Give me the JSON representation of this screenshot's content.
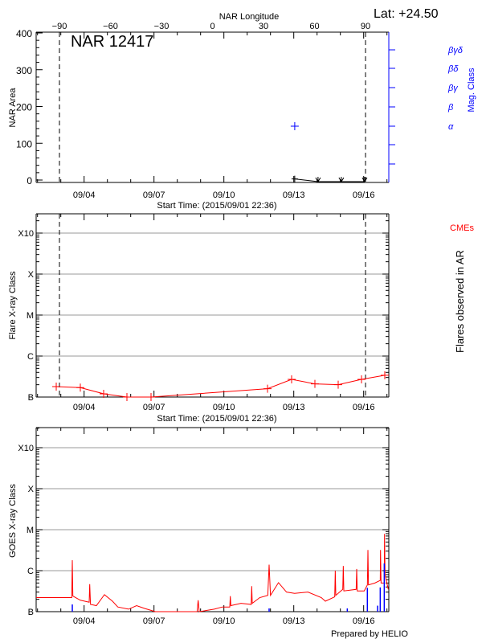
{
  "header": {
    "lat_label": "Lat: +24.50",
    "region_title": "NAR 12417",
    "prepared_by": "Prepared by HELIO"
  },
  "colors": {
    "axis": "#000000",
    "grid": "#999999",
    "mag_class": "#0000ff",
    "flares": "#ff0000",
    "goes_long": "#ff0000",
    "goes_short": "#0000ff",
    "cmes": "#ff0000"
  },
  "chart_data": [
    {
      "type": "line",
      "panel": "area",
      "start": "2015-09-01T22:36",
      "end": "2015-09-17T02:00",
      "xlabel": "Start Time: (2015/09/01 22:36)",
      "x_tick_labels": [
        "09/04",
        "09/07",
        "09/10",
        "09/13",
        "09/16"
      ],
      "x_tick_dates": [
        "2015-09-04T00:00",
        "2015-09-07T00:00",
        "2015-09-10T00:00",
        "2015-09-13T00:00",
        "2015-09-16T00:00"
      ],
      "top_axis": {
        "label": "NAR Longitude",
        "tick_values": [
          -90,
          -60,
          -30,
          0,
          30,
          60,
          90
        ],
        "tick_labels": [
          "−90",
          "−60",
          "−30",
          "0",
          "30",
          "60",
          "90"
        ]
      },
      "limb_longitudes": [
        -90,
        90
      ],
      "ylabel": "NAR Area",
      "ylim": [
        0,
        400
      ],
      "y_ticks": [
        0,
        100,
        200,
        300,
        400
      ],
      "y_tick_labels": [
        "0",
        "100",
        "200",
        "300",
        "400"
      ],
      "area_series": [
        {
          "time": "2015-09-13T01:00",
          "area": 3,
          "marker": "plus"
        },
        {
          "time": "2015-09-14T01:00",
          "area": 0,
          "marker": "arrow"
        },
        {
          "time": "2015-09-15T01:00",
          "area": 0,
          "marker": "arrow"
        },
        {
          "time": "2015-09-16T01:00",
          "area": 0,
          "marker": "arrow"
        }
      ],
      "right_axis": {
        "label": "Mag. Class",
        "classes": [
          "α",
          "β",
          "βγ",
          "βδ",
          "βγδ"
        ]
      },
      "mag_class_series": [
        {
          "time": "2015-09-13T01:00",
          "class": "α"
        }
      ]
    },
    {
      "type": "line",
      "panel": "flares",
      "xlabel": "Start Time: (2015/09/01 22:36)",
      "ylabel": "Flare X-ray Class",
      "right_label": "Flares observed in AR",
      "cme_label": "CMEs",
      "y_scale": "log",
      "y_classes": [
        "B",
        "C",
        "M",
        "X",
        "X10"
      ],
      "y_class_flux": [
        1e-07,
        1e-06,
        1e-05,
        0.0001,
        0.001
      ],
      "grid": true,
      "series": [
        {
          "time": "2015-09-02T19:18",
          "flux": 1.8e-07
        },
        {
          "time": "2015-09-03T20:07",
          "flux": 1.7e-07
        },
        {
          "time": "2015-09-04T20:07",
          "flux": 1.2e-07
        },
        {
          "time": "2015-09-05T20:07",
          "flux": 1e-07
        },
        {
          "time": "2015-09-06T20:57",
          "flux": 1e-07
        },
        {
          "time": "2015-09-11T20:57",
          "flux": 1.6e-07
        },
        {
          "time": "2015-09-12T21:46",
          "flux": 2.7e-07
        },
        {
          "time": "2015-09-13T21:46",
          "flux": 2.1e-07
        },
        {
          "time": "2015-09-14T21:46",
          "flux": 2e-07
        },
        {
          "time": "2015-09-15T21:46",
          "flux": 2.7e-07
        },
        {
          "time": "2015-09-16T21:46",
          "flux": 3.4e-07
        }
      ]
    },
    {
      "type": "line",
      "panel": "goes",
      "ylabel": "GOES X-ray Class",
      "y_scale": "log",
      "y_classes": [
        "B",
        "C",
        "M",
        "X",
        "X10"
      ],
      "y_class_flux": [
        1e-07,
        1e-06,
        1e-05,
        0.0001,
        0.001
      ],
      "grid": true,
      "long_channel": [
        [
          "2015-09-01T22:36",
          2.2e-07
        ],
        [
          "2015-09-03T00:49",
          2.2e-07
        ],
        [
          "2015-09-03T11:17",
          2.2e-07
        ],
        [
          "2015-09-03T11:51",
          1.8e-06
        ],
        [
          "2015-09-03T12:24",
          2.4e-07
        ],
        [
          "2015-09-03T20:08",
          1.9e-07
        ],
        [
          "2015-09-04T05:14",
          1.7e-07
        ],
        [
          "2015-09-04T05:47",
          4.7e-07
        ],
        [
          "2015-09-04T06:36",
          1.5e-07
        ],
        [
          "2015-09-04T12:40",
          1.4e-07
        ],
        [
          "2015-09-04T20:57",
          2.6e-07
        ],
        [
          "2015-09-05T05:14",
          1.8e-07
        ],
        [
          "2015-09-05T10:45",
          1.3e-07
        ],
        [
          "2015-09-05T21:48",
          1.15e-07
        ],
        [
          "2015-09-06T06:04",
          1.4e-07
        ],
        [
          "2015-09-06T14:20",
          1.2e-07
        ],
        [
          "2015-09-07T01:22",
          1e-07
        ],
        [
          "2015-09-08T20:24",
          1e-07
        ],
        [
          "2015-09-08T21:30",
          1.9e-07
        ],
        [
          "2015-09-08T22:36",
          1e-07
        ],
        [
          "2015-09-09T14:04",
          1.15e-07
        ],
        [
          "2015-09-09T22:21",
          1.3e-07
        ],
        [
          "2015-09-10T06:04",
          1.3e-07
        ],
        [
          "2015-09-10T06:37",
          2.4e-07
        ],
        [
          "2015-09-10T07:10",
          1.4e-07
        ],
        [
          "2015-09-10T17:38",
          1.6e-07
        ],
        [
          "2015-09-11T04:08",
          1.5e-07
        ],
        [
          "2015-09-11T04:41",
          4.2e-07
        ],
        [
          "2015-09-11T05:14",
          1.6e-07
        ],
        [
          "2015-09-11T12:58",
          2.2e-07
        ],
        [
          "2015-09-11T21:14",
          2.5e-07
        ],
        [
          "2015-09-11T22:36",
          1.4e-06
        ],
        [
          "2015-09-12T00:00",
          2.5e-07
        ],
        [
          "2015-09-12T08:15",
          5.1e-07
        ],
        [
          "2015-09-12T16:32",
          3e-07
        ],
        [
          "2015-09-13T00:49",
          2.8e-07
        ],
        [
          "2015-09-13T14:37",
          3e-07
        ],
        [
          "2015-09-14T04:24",
          2.2e-07
        ],
        [
          "2015-09-14T08:33",
          1.8e-07
        ],
        [
          "2015-09-14T18:11",
          2.3e-07
        ],
        [
          "2015-09-14T18:45",
          1e-06
        ],
        [
          "2015-09-14T19:18",
          2.5e-07
        ],
        [
          "2015-09-15T02:28",
          3.5e-07
        ],
        [
          "2015-09-15T03:01",
          1.3e-06
        ],
        [
          "2015-09-15T03:35",
          3.2e-07
        ],
        [
          "2015-09-15T16:16",
          3.5e-07
        ],
        [
          "2015-09-15T16:49",
          1.1e-06
        ],
        [
          "2015-09-15T17:23",
          3.2e-07
        ],
        [
          "2015-09-16T00:33",
          3.2e-07
        ],
        [
          "2015-09-16T03:50",
          4.5e-07
        ],
        [
          "2015-09-16T04:24",
          3.2e-06
        ],
        [
          "2015-09-16T04:57",
          4.5e-07
        ],
        [
          "2015-09-16T11:34",
          5e-07
        ],
        [
          "2015-09-16T17:05",
          5.8e-07
        ],
        [
          "2015-09-16T17:22",
          3.2e-06
        ],
        [
          "2015-09-16T17:56",
          5e-07
        ],
        [
          "2015-09-16T21:14",
          5e-07
        ],
        [
          "2015-09-16T21:30",
          7.9e-06
        ],
        [
          "2015-09-16T22:03",
          7.9e-07
        ],
        [
          "2015-09-17T01:22",
          3.5e-07
        ]
      ],
      "short_channel_peaks": [
        [
          "2015-09-03T11:51",
          1.5e-07
        ],
        [
          "2015-09-11T22:36",
          1.2e-07
        ],
        [
          "2015-09-15T07:09",
          1.2e-07
        ],
        [
          "2015-09-16T03:50",
          3.8e-07
        ],
        [
          "2015-09-16T14:20",
          1.4e-07
        ],
        [
          "2015-09-16T17:05",
          3.9e-07
        ],
        [
          "2015-09-16T21:14",
          1.5e-06
        ]
      ]
    }
  ]
}
